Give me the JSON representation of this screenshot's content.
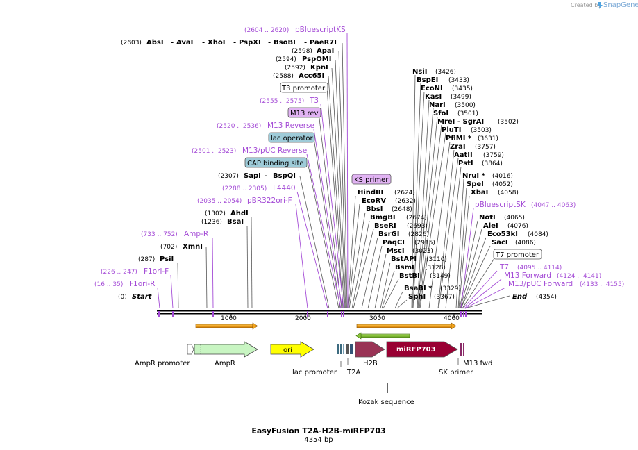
{
  "credit": {
    "prefix": "Created by",
    "brand": "SnapGene"
  },
  "footer": {
    "title": "EasyFusion T2A-H2B-miRFP703",
    "length": "4354 bp"
  },
  "axis": {
    "ticks": [
      "1000",
      "2000",
      "3000",
      "4000"
    ]
  },
  "left_sites": [
    {
      "pos": "(2603)",
      "names": [
        "AbsI",
        "AvaI",
        "XhoI",
        "PspXI",
        "BsoBI",
        "PaeR7I"
      ]
    },
    {
      "pos": "(2598)",
      "names": [
        "ApaI"
      ]
    },
    {
      "pos": "(2594)",
      "names": [
        "PspOMI"
      ]
    },
    {
      "pos": "(2592)",
      "names": [
        "KpnI"
      ]
    },
    {
      "pos": "(2588)",
      "names": [
        "Acc65I"
      ]
    },
    {
      "pos": "(2307)",
      "names": [
        "SapI",
        "BspQI"
      ]
    },
    {
      "pos": "(1302)",
      "names": [
        "AhdI"
      ]
    },
    {
      "pos": "(1236)",
      "names": [
        "BsaI"
      ]
    },
    {
      "pos": "(702)",
      "names": [
        "XmnI"
      ]
    },
    {
      "pos": "(287)",
      "names": [
        "PsiI"
      ]
    }
  ],
  "left_primers": [
    {
      "pos": "(2604 .. 2620)",
      "name": "pBluescriptKS"
    },
    {
      "pos": "(2555 .. 2575)",
      "name": "T3"
    },
    {
      "pos": "(2520 .. 2536)",
      "name": "M13 Reverse"
    },
    {
      "pos": "(2501 .. 2523)",
      "name": "M13/pUC Reverse"
    },
    {
      "pos": "(2288 .. 2305)",
      "name": "L4440"
    },
    {
      "pos": "(2035 .. 2054)",
      "name": "pBR322ori-F"
    },
    {
      "pos": "(733 .. 752)",
      "name": "Amp-R"
    },
    {
      "pos": "(226 .. 247)",
      "name": "F1ori-F"
    },
    {
      "pos": "(16 .. 35)",
      "name": "F1ori-R"
    }
  ],
  "boxed_labels": {
    "t3_promoter": "T3 promoter",
    "m13_rev": "M13 rev",
    "lac_operator": "lac operator",
    "cap_binding_site": "CAP binding site",
    "ks_primer": "KS primer",
    "t7_promoter": "T7 promoter"
  },
  "start_label": {
    "pos": "(0)",
    "name": "Start"
  },
  "end_label": {
    "name": "End",
    "pos": "(4354)"
  },
  "right_sites": [
    {
      "name": "NsiI",
      "pos": "(3426)"
    },
    {
      "name": "BspEI",
      "pos": "(3433)"
    },
    {
      "name": "EcoNI",
      "pos": "(3435)"
    },
    {
      "name": "KasI",
      "pos": "(3499)"
    },
    {
      "name": "NarI",
      "pos": "(3500)"
    },
    {
      "name": "SfoI",
      "pos": "(3501)"
    },
    {
      "name": "MreI - SgrAI",
      "pos": "(3502)"
    },
    {
      "name": "PluTI",
      "pos": "(3503)"
    },
    {
      "name": "PflMI *",
      "pos": "(3631)"
    },
    {
      "name": "ZraI",
      "pos": "(3757)"
    },
    {
      "name": "AatII",
      "pos": "(3759)"
    },
    {
      "name": "PstI",
      "pos": "(3864)"
    },
    {
      "name": "NruI *",
      "pos": "(4016)"
    },
    {
      "name": "SpeI",
      "pos": "(4052)"
    },
    {
      "name": "XbaI",
      "pos": "(4058)"
    },
    {
      "name": "NotI",
      "pos": "(4065)"
    },
    {
      "name": "AleI",
      "pos": "(4076)"
    },
    {
      "name": "Eco53kI",
      "pos": "(4084)"
    },
    {
      "name": "SacI",
      "pos": "(4086)"
    }
  ],
  "mid_sites": [
    {
      "name": "HindIII",
      "pos": "(2624)"
    },
    {
      "name": "EcoRV",
      "pos": "(2632)"
    },
    {
      "name": "BbsI",
      "pos": "(2648)"
    },
    {
      "name": "BmgBI",
      "pos": "(2674)"
    },
    {
      "name": "BseRI",
      "pos": "(2693)"
    },
    {
      "name": "BsrGI",
      "pos": "(2826)"
    },
    {
      "name": "PaqCI",
      "pos": "(2915)"
    },
    {
      "name": "MscI",
      "pos": "(3023)"
    },
    {
      "name": "BstAPI",
      "pos": "(3110)"
    },
    {
      "name": "BsmI",
      "pos": "(3128)"
    },
    {
      "name": "BstBI",
      "pos": "(3149)"
    },
    {
      "name": "BsaBI *",
      "pos": "(3329)"
    },
    {
      "name": "SphI",
      "pos": "(3367)"
    }
  ],
  "right_primers": [
    {
      "name": "pBluescriptSK",
      "pos": "(4047 .. 4063)"
    },
    {
      "name": "T7",
      "pos": "(4095 .. 4114)"
    },
    {
      "name": "M13 Forward",
      "pos": "(4124 .. 4141)"
    },
    {
      "name": "M13/pUC Forward",
      "pos": "(4133 .. 4155)"
    }
  ],
  "features": {
    "ampr_promoter": "AmpR promoter",
    "ampr": "AmpR",
    "ori": "ori",
    "lac_promoter": "lac promoter",
    "t2a": "T2A",
    "h2b": "H2B",
    "mirfp703": "miRFP703",
    "m13_fwd": "M13 fwd",
    "sk_primer": "SK primer",
    "kozak": "Kozak sequence"
  },
  "colors": {
    "primer": "#a44bd6",
    "ampr": "#c8f5c2",
    "ori": "#ffff00",
    "h2b": "#993355",
    "mirfp703": "#990033",
    "orange_arrow": "#f3a41b",
    "green_arrow": "#89c43a",
    "lac_operator_box": "#9ecbd8",
    "primer_box": "#e1b3f3"
  }
}
